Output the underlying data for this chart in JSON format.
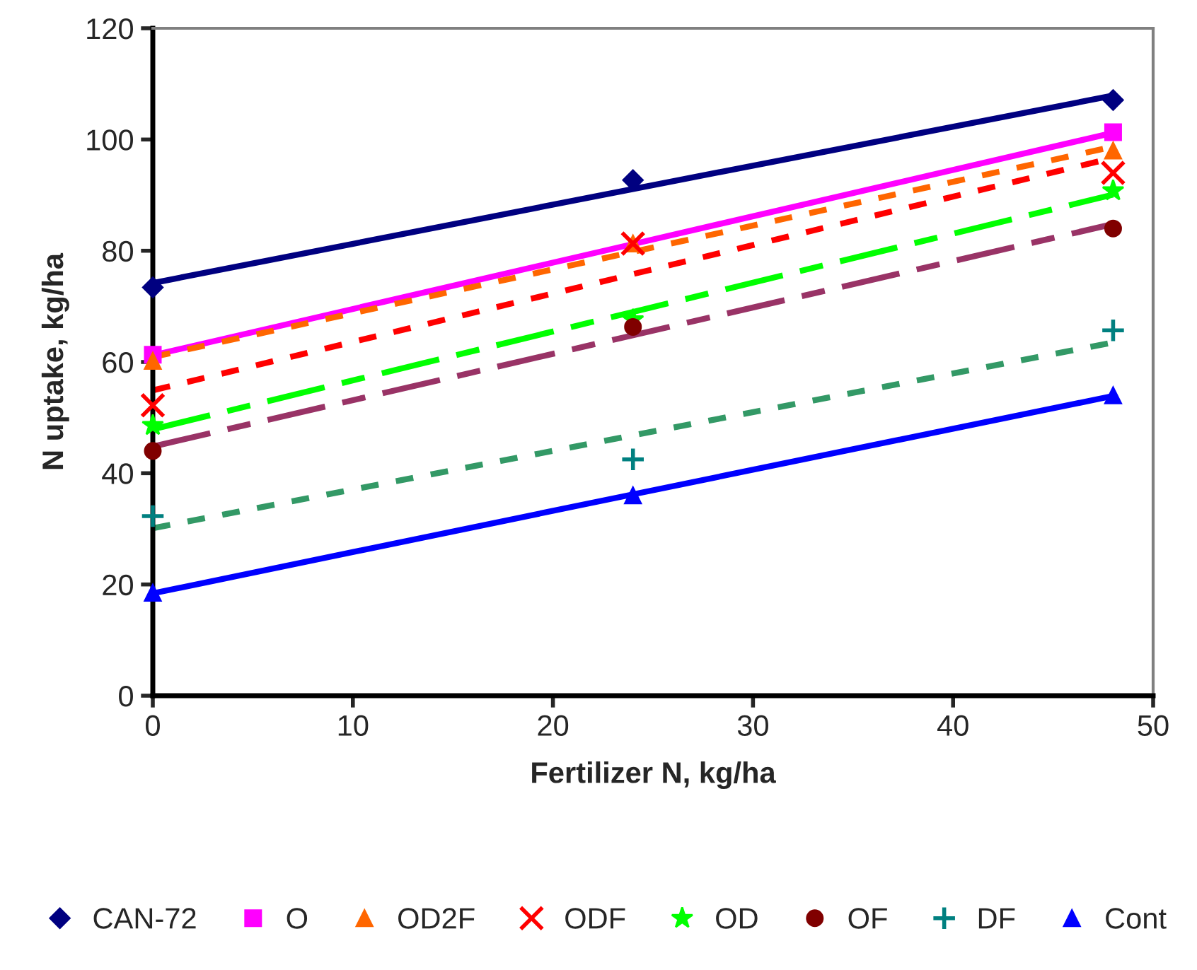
{
  "chart_data": {
    "type": "scatter",
    "xlabel": "Fertilizer N, kg/ha",
    "ylabel": "N uptake, kg/ha",
    "x": [
      0,
      24,
      48
    ],
    "xlim": [
      0,
      50
    ],
    "xticks": [
      0,
      10,
      20,
      30,
      40,
      50
    ],
    "ylim": [
      0,
      120
    ],
    "yticks": [
      0,
      20,
      40,
      60,
      80,
      100,
      120
    ],
    "grid": false,
    "legend": "bottom",
    "series": [
      {
        "type": "line",
        "values": [
          74.2,
          91.1,
          107.9
        ],
        "color": "#000080",
        "line_style": "solid"
      },
      {
        "type": "line",
        "values": [
          61.2,
          81.2,
          101.2
        ],
        "color": "#ff00ff",
        "line_style": "solid"
      },
      {
        "type": "line",
        "values": [
          60.9,
          79.8,
          98.7
        ],
        "color": "#ff6600",
        "line_style": "dotted"
      },
      {
        "type": "line",
        "values": [
          54.9,
          75.8,
          96.7
        ],
        "color": "#ff0000",
        "line_style": "dotted"
      },
      {
        "type": "line",
        "values": [
          47.9,
          69,
          90.1
        ],
        "color": "#00ff00",
        "line_style": "dashdot"
      },
      {
        "type": "line",
        "values": [
          44.8,
          64.8,
          84.8
        ],
        "color": "#993366",
        "line_style": "dashdot"
      },
      {
        "type": "line",
        "values": [
          30.1,
          46.8,
          63.5
        ],
        "color": "#339966",
        "line_style": "dotted"
      },
      {
        "type": "line",
        "values": [
          18.4,
          36.2,
          53.9
        ],
        "color": "#0000ff",
        "line_style": "solid"
      },
      {
        "name": "CAN-72",
        "color": "#000080",
        "marker": "diamond",
        "values": [
          73.4,
          92.7,
          107.1
        ]
      },
      {
        "name": "O",
        "color": "#ff00ff",
        "marker": "square",
        "values": [
          61.3,
          null,
          101.3
        ]
      },
      {
        "name": "OD2F",
        "color": "#ff6600",
        "marker": "triangle",
        "values": [
          60.2,
          81.3,
          98
        ]
      },
      {
        "name": "ODF",
        "color": "#ff0000",
        "marker": "x",
        "values": [
          52.2,
          81.3,
          94
        ]
      },
      {
        "name": "OD",
        "color": "#00ff00",
        "marker": "star",
        "values": [
          48.6,
          67.6,
          90.8
        ]
      },
      {
        "name": "OF",
        "color": "#800000",
        "marker": "circle",
        "values": [
          44,
          66.3,
          84
        ]
      },
      {
        "name": "DF",
        "color": "#008080",
        "marker": "cross",
        "values": [
          32.3,
          42.5,
          65.7
        ]
      },
      {
        "name": "Cont",
        "color": "#0000ff",
        "marker": "triangle",
        "values": [
          18.5,
          36,
          54
        ]
      }
    ]
  }
}
